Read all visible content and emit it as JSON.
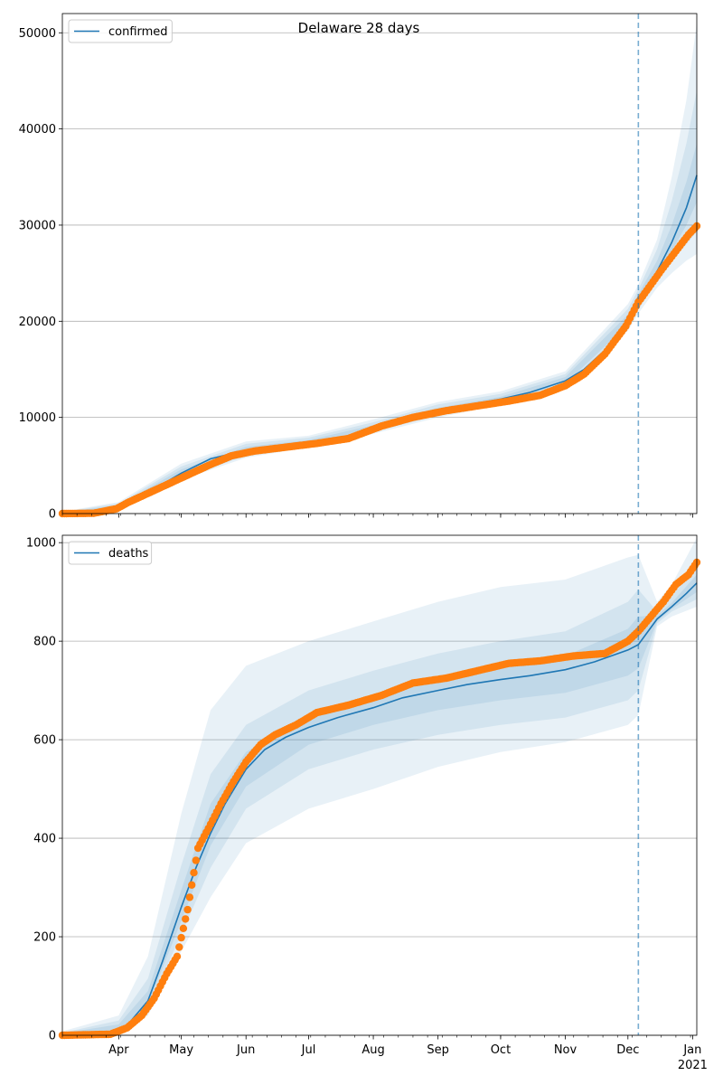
{
  "figure": {
    "title": "Delaware 28 days"
  },
  "colors": {
    "model": "#1f77b4",
    "observed": "#ff7f0e",
    "band": "#1f77b4",
    "grid": "#b0b0b0",
    "forecast_line": "#1f77b4"
  },
  "x_axis": {
    "start": "2020-03-05",
    "end": "2021-01-03",
    "month_labels": [
      "Apr",
      "May",
      "Jun",
      "Jul",
      "Aug",
      "Sep",
      "Oct",
      "Nov",
      "Dec",
      "Jan"
    ],
    "month_dates": [
      "2020-04-01",
      "2020-05-01",
      "2020-06-01",
      "2020-07-01",
      "2020-08-01",
      "2020-09-01",
      "2020-10-01",
      "2020-11-01",
      "2020-12-01",
      "2021-01-01"
    ],
    "year_label": "2021",
    "forecast_start": "2020-12-06"
  },
  "chart_data": [
    {
      "type": "line",
      "legend": "confirmed",
      "legend_position": "top-left",
      "grid": "horizontal",
      "ylim": [
        0,
        52000
      ],
      "yticks": [
        0,
        10000,
        20000,
        30000,
        40000,
        50000
      ],
      "ytick_labels": [
        "0",
        "10000",
        "20000",
        "30000",
        "40000",
        "50000"
      ],
      "model": {
        "x": [
          "2020-03-05",
          "2020-03-15",
          "2020-03-25",
          "2020-04-01",
          "2020-04-10",
          "2020-04-20",
          "2020-05-01",
          "2020-05-15",
          "2020-06-01",
          "2020-06-15",
          "2020-07-01",
          "2020-07-15",
          "2020-08-01",
          "2020-08-15",
          "2020-09-01",
          "2020-09-15",
          "2020-10-01",
          "2020-10-15",
          "2020-11-01",
          "2020-11-10",
          "2020-11-20",
          "2020-12-01",
          "2020-12-06",
          "2020-12-15",
          "2020-12-22",
          "2020-12-29",
          "2021-01-03"
        ],
        "y": [
          0,
          50,
          300,
          800,
          1700,
          2800,
          4200,
          5700,
          6600,
          7000,
          7400,
          7800,
          8900,
          9900,
          10700,
          11300,
          11900,
          12600,
          13800,
          15000,
          17000,
          20100,
          22200,
          25200,
          28200,
          31800,
          35200
        ]
      },
      "bands": [
        {
          "x": [
            "2020-03-05",
            "2020-04-01",
            "2020-05-01",
            "2020-06-01",
            "2020-07-01",
            "2020-08-01",
            "2020-09-01",
            "2020-10-01",
            "2020-11-01",
            "2020-12-01",
            "2020-12-06",
            "2020-12-15",
            "2020-12-22",
            "2020-12-29",
            "2021-01-03"
          ],
          "lower": [
            0,
            600,
            3500,
            5800,
            6900,
            8300,
            10000,
            11300,
            13000,
            19000,
            20800,
            23500,
            25000,
            26300,
            27000
          ],
          "upper": [
            200,
            1200,
            5200,
            7500,
            8100,
            9800,
            11600,
            12700,
            14800,
            21800,
            23800,
            28500,
            35000,
            43000,
            51000
          ]
        },
        {
          "x": [
            "2020-03-05",
            "2020-04-01",
            "2020-05-01",
            "2020-06-01",
            "2020-07-01",
            "2020-08-01",
            "2020-09-01",
            "2020-10-01",
            "2020-11-01",
            "2020-12-01",
            "2020-12-06",
            "2020-12-15",
            "2020-12-22",
            "2020-12-29",
            "2021-01-03"
          ],
          "lower": [
            0,
            680,
            3700,
            6000,
            7050,
            8500,
            10200,
            11500,
            13250,
            19300,
            21200,
            24200,
            26300,
            28000,
            29300
          ],
          "upper": [
            150,
            1050,
            4900,
            7250,
            7900,
            9500,
            11350,
            12450,
            14500,
            21300,
            23300,
            27500,
            32500,
            38500,
            44000
          ]
        },
        {
          "x": [
            "2020-03-05",
            "2020-04-01",
            "2020-05-01",
            "2020-06-01",
            "2020-07-01",
            "2020-08-01",
            "2020-09-01",
            "2020-10-01",
            "2020-11-01",
            "2020-12-01",
            "2020-12-06",
            "2020-12-15",
            "2020-12-22",
            "2020-12-29",
            "2021-01-03"
          ],
          "lower": [
            0,
            740,
            3900,
            6250,
            7200,
            8700,
            10450,
            11700,
            13500,
            19650,
            21650,
            24700,
            27300,
            30000,
            32400
          ],
          "upper": [
            100,
            900,
            4600,
            6950,
            7650,
            9200,
            11000,
            12150,
            14200,
            20700,
            22800,
            26300,
            30000,
            34500,
            38500
          ]
        }
      ],
      "observed": {
        "x": [
          "2020-03-05",
          "2020-03-20",
          "2020-03-31",
          "2020-04-05",
          "2020-04-15",
          "2020-04-25",
          "2020-05-05",
          "2020-05-15",
          "2020-05-25",
          "2020-06-05",
          "2020-06-20",
          "2020-07-05",
          "2020-07-20",
          "2020-08-05",
          "2020-08-20",
          "2020-09-05",
          "2020-09-20",
          "2020-10-05",
          "2020-10-20",
          "2020-11-01",
          "2020-11-10",
          "2020-11-20",
          "2020-11-30",
          "2020-12-06",
          "2020-12-12",
          "2020-12-18",
          "2020-12-24",
          "2020-12-30",
          "2021-01-03"
        ],
        "y": [
          0,
          30,
          500,
          1100,
          2100,
          3100,
          4100,
          5100,
          6000,
          6500,
          6900,
          7300,
          7800,
          9100,
          10000,
          10700,
          11200,
          11700,
          12300,
          13300,
          14500,
          16600,
          19500,
          22000,
          23800,
          25600,
          27300,
          29000,
          29900
        ]
      }
    },
    {
      "type": "line",
      "legend": "deaths",
      "legend_position": "top-left",
      "grid": "horizontal",
      "ylim": [
        0,
        1015
      ],
      "yticks": [
        0,
        200,
        400,
        600,
        800,
        1000
      ],
      "ytick_labels": [
        "0",
        "200",
        "400",
        "600",
        "800",
        "1000"
      ],
      "model": {
        "x": [
          "2020-03-05",
          "2020-03-25",
          "2020-04-05",
          "2020-04-15",
          "2020-04-22",
          "2020-05-01",
          "2020-05-08",
          "2020-05-15",
          "2020-05-22",
          "2020-06-01",
          "2020-06-10",
          "2020-06-20",
          "2020-07-01",
          "2020-07-15",
          "2020-08-01",
          "2020-08-15",
          "2020-09-01",
          "2020-09-15",
          "2020-10-01",
          "2020-10-15",
          "2020-11-01",
          "2020-11-15",
          "2020-12-01",
          "2020-12-06",
          "2020-12-15",
          "2020-12-22",
          "2020-12-29",
          "2021-01-03"
        ],
        "y": [
          0,
          3,
          20,
          70,
          150,
          260,
          340,
          410,
          470,
          540,
          580,
          605,
          625,
          645,
          665,
          685,
          700,
          712,
          722,
          730,
          742,
          758,
          782,
          793,
          845,
          870,
          897,
          918
        ]
      },
      "bands": [
        {
          "x": [
            "2020-03-05",
            "2020-04-01",
            "2020-04-15",
            "2020-05-01",
            "2020-05-15",
            "2020-06-01",
            "2020-07-01",
            "2020-08-01",
            "2020-09-01",
            "2020-10-01",
            "2020-11-01",
            "2020-12-01",
            "2020-12-06",
            "2020-12-15",
            "2020-12-22",
            "2021-01-03"
          ],
          "lower": [
            0,
            4,
            40,
            170,
            280,
            390,
            460,
            500,
            545,
            575,
            595,
            630,
            650,
            830,
            850,
            870
          ],
          "upper": [
            8,
            40,
            160,
            450,
            660,
            750,
            800,
            840,
            880,
            910,
            925,
            970,
            975,
            880,
            915,
            1010
          ]
        },
        {
          "x": [
            "2020-03-05",
            "2020-04-01",
            "2020-04-15",
            "2020-05-01",
            "2020-05-15",
            "2020-06-01",
            "2020-07-01",
            "2020-08-01",
            "2020-09-01",
            "2020-10-01",
            "2020-11-01",
            "2020-12-01",
            "2020-12-06",
            "2020-12-15",
            "2020-12-22",
            "2021-01-03"
          ],
          "lower": [
            0,
            6,
            55,
            205,
            340,
            460,
            540,
            580,
            610,
            630,
            645,
            680,
            700,
            836,
            860,
            885
          ],
          "upper": [
            5,
            30,
            115,
            345,
            530,
            630,
            700,
            740,
            775,
            800,
            820,
            880,
            905,
            860,
            890,
            960
          ]
        },
        {
          "x": [
            "2020-03-05",
            "2020-04-01",
            "2020-04-15",
            "2020-05-01",
            "2020-05-15",
            "2020-06-01",
            "2020-07-01",
            "2020-08-01",
            "2020-09-01",
            "2020-10-01",
            "2020-11-01",
            "2020-12-01",
            "2020-12-06",
            "2020-12-15",
            "2020-12-22",
            "2021-01-03"
          ],
          "lower": [
            0,
            8,
            62,
            232,
            385,
            505,
            590,
            630,
            660,
            680,
            695,
            730,
            745,
            840,
            865,
            900
          ],
          "upper": [
            4,
            22,
            90,
            295,
            470,
            575,
            650,
            690,
            725,
            750,
            770,
            825,
            850,
            852,
            878,
            935
          ]
        }
      ],
      "observed": {
        "x": [
          "2020-03-05",
          "2020-03-28",
          "2020-04-05",
          "2020-04-12",
          "2020-04-18",
          "2020-04-24",
          "2020-04-29",
          "2020-05-04",
          "2020-05-09",
          "2020-05-14",
          "2020-05-20",
          "2020-05-26",
          "2020-06-01",
          "2020-06-08",
          "2020-06-15",
          "2020-06-25",
          "2020-07-05",
          "2020-07-20",
          "2020-08-05",
          "2020-08-20",
          "2020-09-05",
          "2020-09-20",
          "2020-10-05",
          "2020-10-20",
          "2020-11-05",
          "2020-11-20",
          "2020-12-01",
          "2020-12-06",
          "2020-12-12",
          "2020-12-18",
          "2020-12-24",
          "2020-12-30",
          "2021-01-03"
        ],
        "y": [
          0,
          2,
          15,
          40,
          75,
          125,
          160,
          255,
          380,
          420,
          470,
          515,
          555,
          590,
          610,
          630,
          655,
          670,
          690,
          715,
          725,
          740,
          755,
          760,
          770,
          775,
          800,
          820,
          850,
          880,
          915,
          935,
          960
        ]
      }
    }
  ]
}
